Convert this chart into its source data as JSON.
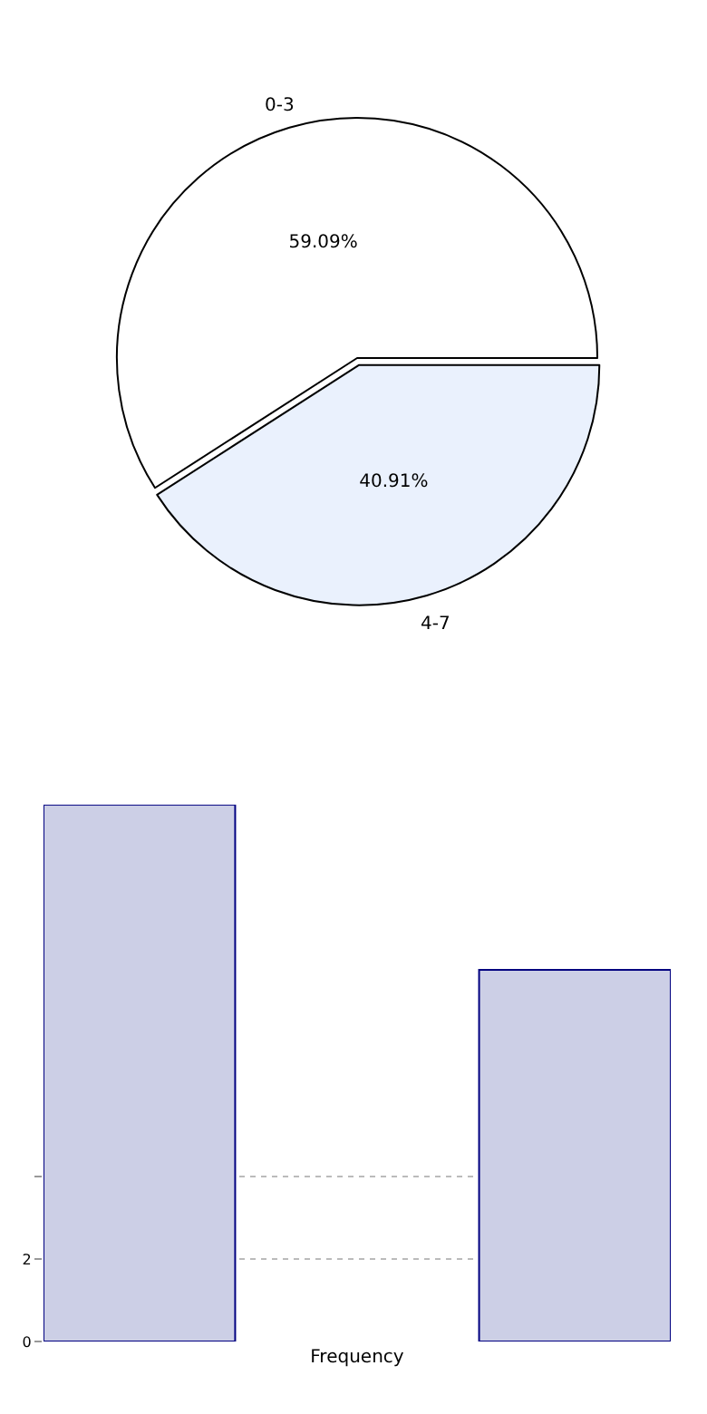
{
  "chart_data": [
    {
      "type": "pie",
      "categories": [
        "0-3",
        "4-7"
      ],
      "values": [
        59.09,
        40.91
      ],
      "colors": [
        "#ffffff",
        "#eaf1fd"
      ],
      "value_labels": [
        "59.09%",
        "40.91%"
      ]
    },
    {
      "type": "bar",
      "categories": [
        null,
        null
      ],
      "values": [
        13,
        9
      ],
      "color": "#cccfe6",
      "xlabel": "Frequency",
      "ylim": [
        0,
        13
      ],
      "yticks": [
        0,
        2,
        {
          "value": 4,
          "label": null
        }
      ],
      "grid": "y"
    }
  ]
}
